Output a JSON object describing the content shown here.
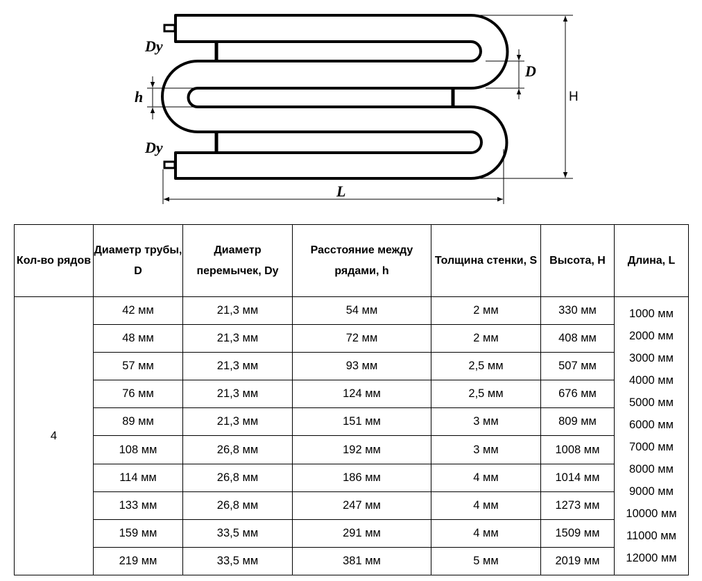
{
  "diagram": {
    "labels": {
      "dy_top": "Dy",
      "h": "h",
      "dy_bottom": "Dy",
      "d": "D",
      "height": "H",
      "length": "L"
    }
  },
  "table": {
    "headers": [
      "Кол-во рядов",
      "Диаметр трубы, D",
      "Диаметр перемычек, Dy",
      "Расстояние между рядами, h",
      "Толщина стенки, S",
      "Высота, H",
      "Длина, L"
    ],
    "rows_count": "4",
    "rows": [
      [
        "42 мм",
        "21,3 мм",
        "54 мм",
        "2 мм",
        "330 мм"
      ],
      [
        "48 мм",
        "21,3 мм",
        "72 мм",
        "2 мм",
        "408 мм"
      ],
      [
        "57 мм",
        "21,3 мм",
        "93 мм",
        "2,5 мм",
        "507 мм"
      ],
      [
        "76 мм",
        "21,3 мм",
        "124 мм",
        "2,5 мм",
        "676 мм"
      ],
      [
        "89 мм",
        "21,3 мм",
        "151 мм",
        "3 мм",
        "809 мм"
      ],
      [
        "108 мм",
        "26,8 мм",
        "192 мм",
        "3 мм",
        "1008 мм"
      ],
      [
        "114 мм",
        "26,8 мм",
        "186 мм",
        "4 мм",
        "1014 мм"
      ],
      [
        "133 мм",
        "26,8 мм",
        "247 мм",
        "4 мм",
        "1273 мм"
      ],
      [
        "159 мм",
        "33,5 мм",
        "291 мм",
        "4 мм",
        "1509 мм"
      ],
      [
        "219 мм",
        "33,5 мм",
        "381 мм",
        "5 мм",
        "2019 мм"
      ]
    ],
    "lengths": [
      "1000 мм",
      "2000 мм",
      "3000 мм",
      "4000 мм",
      "5000 мм",
      "6000 мм",
      "7000 мм",
      "8000 мм",
      "9000 мм",
      "10000 мм",
      "11000 мм",
      "12000 мм"
    ]
  }
}
